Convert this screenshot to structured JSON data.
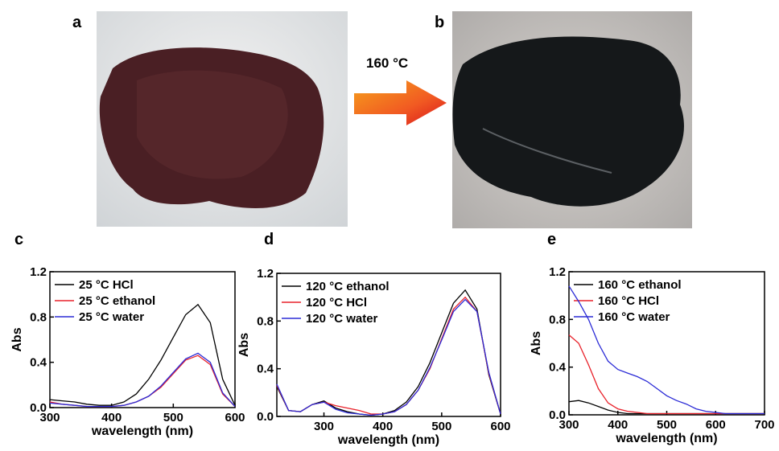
{
  "panels": {
    "a": "a",
    "b": "b",
    "arrow_label": "160 °C"
  },
  "chart_data": [
    {
      "type": "line",
      "panel": "c",
      "x_label": "wavelength (nm)",
      "y_label": "Abs",
      "x": [
        300,
        320,
        340,
        360,
        380,
        400,
        420,
        440,
        460,
        480,
        500,
        520,
        540,
        560,
        580,
        600
      ],
      "xlim": [
        300,
        600
      ],
      "xticks": [
        300,
        400,
        500,
        600
      ],
      "ylim": [
        0,
        1.2
      ],
      "yticks": [
        {
          "value": 0,
          "label": "0.0"
        },
        0.4,
        0.8,
        1.2
      ],
      "series": [
        {
          "name": "25 °C  HCl",
          "color": "#000000",
          "values": [
            0.07,
            0.06,
            0.05,
            0.03,
            0.02,
            0.02,
            0.05,
            0.12,
            0.25,
            0.42,
            0.62,
            0.82,
            0.91,
            0.75,
            0.25,
            0.02
          ]
        },
        {
          "name": "25 °C  ethanol",
          "color": "#e8212a",
          "values": [
            0.05,
            0.03,
            0.02,
            0.01,
            0.01,
            0.01,
            0.02,
            0.05,
            0.1,
            0.18,
            0.3,
            0.42,
            0.46,
            0.38,
            0.12,
            0.01
          ]
        },
        {
          "name": "25 °C water",
          "color": "#2b2bd6",
          "values": [
            0.04,
            0.03,
            0.02,
            0.01,
            0.01,
            0.01,
            0.02,
            0.05,
            0.1,
            0.19,
            0.31,
            0.43,
            0.48,
            0.4,
            0.13,
            0.01
          ]
        }
      ]
    },
    {
      "type": "line",
      "panel": "d",
      "x_label": "wavelength (nm)",
      "y_label": "Abs",
      "x": [
        220,
        240,
        260,
        280,
        300,
        320,
        340,
        360,
        380,
        400,
        420,
        440,
        460,
        480,
        500,
        520,
        540,
        560,
        580,
        600
      ],
      "xlim": [
        220,
        600
      ],
      "xticks": [
        300,
        400,
        500,
        600
      ],
      "ylim": [
        0,
        1.2
      ],
      "yticks": [
        {
          "value": 0,
          "label": "0.0"
        },
        0.4,
        0.8,
        1.2
      ],
      "series": [
        {
          "name": "120 °C  ethanol",
          "color": "#000000",
          "values": [
            0.25,
            0.05,
            0.04,
            0.1,
            0.13,
            0.07,
            0.04,
            0.02,
            0.01,
            0.02,
            0.05,
            0.12,
            0.25,
            0.45,
            0.7,
            0.95,
            1.06,
            0.9,
            0.35,
            0.02
          ]
        },
        {
          "name": "120 °C  HCl",
          "color": "#e8212a",
          "values": [
            0.26,
            0.05,
            0.04,
            0.1,
            0.12,
            0.09,
            0.07,
            0.05,
            0.02,
            0.02,
            0.04,
            0.1,
            0.22,
            0.4,
            0.65,
            0.9,
            1.0,
            0.88,
            0.36,
            0.02
          ]
        },
        {
          "name": "120 °C  water",
          "color": "#2b2bd6",
          "values": [
            0.27,
            0.05,
            0.04,
            0.1,
            0.12,
            0.06,
            0.03,
            0.02,
            0.01,
            0.02,
            0.04,
            0.1,
            0.22,
            0.41,
            0.64,
            0.88,
            0.98,
            0.88,
            0.37,
            0.02
          ]
        }
      ]
    },
    {
      "type": "line",
      "panel": "e",
      "x_label": "wavelength (nm)",
      "y_label": "Abs",
      "x": [
        300,
        320,
        340,
        360,
        380,
        400,
        420,
        440,
        460,
        480,
        500,
        520,
        540,
        560,
        580,
        600,
        620,
        640,
        660,
        680,
        700
      ],
      "xlim": [
        300,
        700
      ],
      "xticks": [
        300,
        400,
        500,
        600,
        700
      ],
      "ylim": [
        0,
        1.2
      ],
      "yticks": [
        {
          "value": 0,
          "label": "0.0"
        },
        0.4,
        0.8,
        1.2
      ],
      "series": [
        {
          "name": "160  °C ethanol",
          "color": "#000000",
          "values": [
            0.11,
            0.12,
            0.1,
            0.07,
            0.04,
            0.02,
            0.01,
            0.01,
            0.01,
            0.01,
            0.01,
            0.01,
            0.01,
            0.01,
            0.01,
            0.01,
            0.01,
            0.01,
            0.01,
            0.01,
            0.01
          ]
        },
        {
          "name": "160  °C HCl",
          "color": "#e8212a",
          "values": [
            0.67,
            0.6,
            0.42,
            0.22,
            0.1,
            0.05,
            0.03,
            0.02,
            0.01,
            0.01,
            0.01,
            0.01,
            0.01,
            0.01,
            0.01,
            0.01,
            0.01,
            0.01,
            0.01,
            0.01,
            0.01
          ]
        },
        {
          "name": "160  °C water",
          "color": "#2b2bd6",
          "values": [
            1.08,
            0.95,
            0.8,
            0.6,
            0.45,
            0.38,
            0.35,
            0.32,
            0.28,
            0.22,
            0.16,
            0.12,
            0.09,
            0.05,
            0.03,
            0.02,
            0.01,
            0.01,
            0.01,
            0.01,
            0.01
          ]
        }
      ]
    }
  ]
}
